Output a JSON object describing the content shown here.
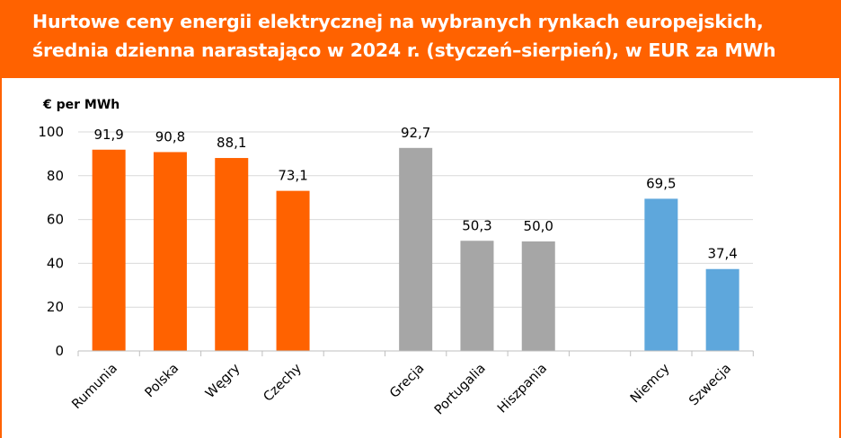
{
  "header": {
    "title_line1": "Hurtowe ceny energii elektrycznej na wybranych rynkach europejskich,",
    "title_line2": "średnia dzienna narastająco w 2024 r. (styczeń–sierpień), w EUR za MWh",
    "color": "#ff6200"
  },
  "chart_data": {
    "type": "bar",
    "title": "Hurtowe ceny energii elektrycznej na wybranych rynkach europejskich, średnia dzienna narastająco w 2024 r. (styczeń–sierpień), w EUR za MWh",
    "ylabel": "€ per MWh",
    "xlabel": "",
    "ylim": [
      0,
      100
    ],
    "yticks": [
      0,
      20,
      40,
      60,
      80,
      100
    ],
    "grid": true,
    "legend": "none",
    "groups": [
      {
        "color": "#ff6200",
        "items": [
          {
            "category": "Rumunia",
            "value": 91.9,
            "label": "91,9"
          },
          {
            "category": "Polska",
            "value": 90.8,
            "label": "90,8"
          },
          {
            "category": "Węgry",
            "value": 88.1,
            "label": "88,1"
          },
          {
            "category": "Czechy",
            "value": 73.1,
            "label": "73,1"
          }
        ]
      },
      {
        "color": "#a6a6a6",
        "items": [
          {
            "category": "Grecja",
            "value": 92.7,
            "label": "92,7"
          },
          {
            "category": "Portugalia",
            "value": 50.3,
            "label": "50,3"
          },
          {
            "category": "Hiszpania",
            "value": 50.0,
            "label": "50,0"
          }
        ]
      },
      {
        "color": "#5ea7dc",
        "items": [
          {
            "category": "Niemcy",
            "value": 69.5,
            "label": "69,5"
          },
          {
            "category": "Szwecja",
            "value": 37.4,
            "label": "37,4"
          }
        ]
      }
    ]
  }
}
